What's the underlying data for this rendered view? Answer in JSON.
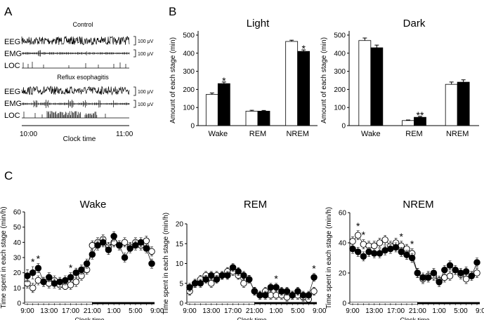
{
  "panel_labels": {
    "a": "A",
    "b": "B",
    "c": "C"
  },
  "traces": {
    "control_title": "Control",
    "reflux_title": "Reflux esophagitis",
    "eeg": "EEG",
    "emg": "EMG",
    "loc": "LOC",
    "scale": "100 μV",
    "x_start": "10:00",
    "x_end": "11:00",
    "xlabel": "Clock time"
  },
  "stage_ylabel": "Amount of each stage (min)",
  "hourly_ylabel": "Time spent in each stage (min/h)",
  "colors": {
    "control": "#ffffff",
    "reflux": "#000000"
  },
  "chart_data": [
    {
      "type": "bar",
      "title": "Light",
      "categories": [
        "Wake",
        "REM",
        "NREM"
      ],
      "ylim": [
        0,
        500
      ],
      "yticks": [
        0,
        100,
        200,
        300,
        400,
        500
      ],
      "ylabel": "Amount of each stage (min)",
      "series": [
        {
          "name": "Control",
          "values": [
            172,
            80,
            465
          ],
          "errors": [
            8,
            5,
            7
          ]
        },
        {
          "name": "Reflux esophagitis",
          "values": [
            232,
            80,
            410
          ],
          "errors": [
            9,
            4,
            8
          ]
        }
      ],
      "annotations": [
        {
          "category": "Wake",
          "text": "*"
        },
        {
          "category": "NREM",
          "text": "*"
        }
      ]
    },
    {
      "type": "bar",
      "title": "Dark",
      "categories": [
        "Wake",
        "REM",
        "NREM"
      ],
      "ylim": [
        0,
        500
      ],
      "yticks": [
        0,
        100,
        200,
        300,
        400,
        500
      ],
      "ylabel": "Amount of each stage (min)",
      "series": [
        {
          "name": "Control",
          "values": [
            470,
            28,
            228
          ],
          "errors": [
            14,
            3,
            13
          ]
        },
        {
          "name": "Reflux esophagitis",
          "values": [
            430,
            46,
            240
          ],
          "errors": [
            15,
            5,
            13
          ]
        }
      ],
      "annotations": [
        {
          "category": "REM",
          "text": "**"
        }
      ]
    },
    {
      "type": "scatter",
      "title": "Wake",
      "x": [
        "9:00",
        "10:00",
        "11:00",
        "12:00",
        "13:00",
        "14:00",
        "15:00",
        "16:00",
        "17:00",
        "18:00",
        "19:00",
        "20:00",
        "21:00",
        "22:00",
        "23:00",
        "0:00",
        "1:00",
        "2:00",
        "3:00",
        "4:00",
        "5:00",
        "6:00",
        "7:00",
        "8:00"
      ],
      "xticks": [
        "9:00",
        "13:00",
        "17:00",
        "21:00",
        "1:00",
        "5:00",
        "9:00"
      ],
      "xlabel": "Clock time",
      "ylim": [
        0,
        60
      ],
      "yticks": [
        0,
        10,
        20,
        30,
        40,
        50,
        60
      ],
      "ylabel": "Time spent in each stage (min/h)",
      "series": [
        {
          "name": "Control",
          "fill": "open",
          "values": [
            13,
            10,
            15,
            14,
            13,
            15,
            12,
            11,
            12,
            14,
            18,
            22,
            38,
            40,
            42,
            37,
            40,
            38,
            40,
            37,
            40,
            38,
            41,
            34
          ],
          "errors": [
            3,
            3,
            3,
            3,
            3,
            3,
            3,
            2,
            3,
            3,
            3,
            3,
            3,
            3,
            3,
            3,
            3,
            3,
            3,
            3,
            3,
            3,
            3,
            3
          ]
        },
        {
          "name": "Reflux esophagitis",
          "fill": "filled",
          "values": [
            18,
            20,
            23,
            14,
            17,
            13,
            14,
            15,
            17,
            20,
            22,
            26,
            32,
            38,
            40,
            35,
            44,
            38,
            30,
            36,
            38,
            40,
            36,
            26
          ],
          "errors": [
            4,
            4,
            3,
            3,
            3,
            3,
            3,
            3,
            3,
            3,
            3,
            3,
            3,
            3,
            3,
            3,
            3,
            3,
            3,
            3,
            3,
            3,
            3,
            3
          ]
        }
      ],
      "annotations": [
        {
          "x": "10:00",
          "text": "*"
        },
        {
          "x": "11:00",
          "text": "*"
        },
        {
          "x": "17:00",
          "text": "*"
        }
      ]
    },
    {
      "type": "scatter",
      "title": "REM",
      "x": [
        "9:00",
        "10:00",
        "11:00",
        "12:00",
        "13:00",
        "14:00",
        "15:00",
        "16:00",
        "17:00",
        "18:00",
        "19:00",
        "20:00",
        "21:00",
        "22:00",
        "23:00",
        "0:00",
        "1:00",
        "2:00",
        "3:00",
        "4:00",
        "5:00",
        "6:00",
        "7:00",
        "8:00"
      ],
      "xticks": [
        "9:00",
        "13:00",
        "17:00",
        "21:00",
        "1:00",
        "5:00",
        "9:00"
      ],
      "xlabel": "Clock time",
      "ylim": [
        0,
        20
      ],
      "yticks": [
        0,
        5,
        10,
        15,
        20
      ],
      "ylabel": "Time spent in each stage (min/h)",
      "series": [
        {
          "name": "Control",
          "fill": "open",
          "values": [
            3,
            5,
            6,
            7,
            5,
            7,
            7,
            8,
            8,
            7,
            5,
            6,
            3,
            2,
            3,
            2,
            2,
            2,
            1.5,
            2,
            2,
            1.5,
            1,
            3
          ],
          "errors": [
            1,
            1,
            1,
            1,
            1,
            1,
            1,
            1,
            1,
            1,
            1,
            1,
            1,
            1,
            1,
            1,
            1,
            1,
            1,
            1,
            1,
            1,
            1,
            1
          ]
        },
        {
          "name": "Reflux esophagitis",
          "fill": "filled",
          "values": [
            4,
            5,
            5,
            6,
            7,
            6,
            7,
            7,
            9,
            8,
            7,
            6,
            3,
            2,
            2,
            4,
            4,
            3,
            3,
            2,
            3,
            2,
            2,
            6.5
          ],
          "errors": [
            1,
            1,
            1,
            1,
            1,
            1,
            1,
            1,
            1,
            1,
            1,
            1,
            1,
            1,
            1,
            1,
            1,
            1,
            1,
            1,
            1,
            1,
            1,
            1
          ]
        }
      ],
      "annotations": [
        {
          "x": "1:00",
          "text": "*"
        },
        {
          "x": "8:00",
          "text": "*"
        }
      ]
    },
    {
      "type": "scatter",
      "title": "NREM",
      "x": [
        "9:00",
        "10:00",
        "11:00",
        "12:00",
        "13:00",
        "14:00",
        "15:00",
        "16:00",
        "17:00",
        "18:00",
        "19:00",
        "20:00",
        "21:00",
        "22:00",
        "23:00",
        "0:00",
        "1:00",
        "2:00",
        "3:00",
        "4:00",
        "5:00",
        "6:00",
        "7:00",
        "8:00"
      ],
      "xticks": [
        "9:00",
        "13:00",
        "17:00",
        "21:00",
        "1:00",
        "5:00",
        "9:00"
      ],
      "xlabel": "Clock time",
      "ylim": [
        0,
        60
      ],
      "yticks": [
        0,
        20,
        40,
        60
      ],
      "ylabel": "Time spent in each stage (min/h)",
      "series": [
        {
          "name": "Control",
          "fill": "open",
          "values": [
            41,
            45,
            39,
            38,
            38,
            40,
            42,
            38,
            40,
            38,
            36,
            33,
            20,
            16,
            18,
            18,
            15,
            17,
            18,
            22,
            19,
            16,
            18,
            20
          ],
          "errors": [
            3,
            3,
            3,
            3,
            3,
            3,
            3,
            3,
            3,
            3,
            3,
            3,
            3,
            3,
            3,
            3,
            3,
            3,
            3,
            3,
            3,
            3,
            3,
            3
          ]
        },
        {
          "name": "Reflux esophagitis",
          "fill": "filled",
          "values": [
            36,
            34,
            31,
            34,
            33,
            33,
            35,
            36,
            37,
            34,
            32,
            30,
            20,
            17,
            17,
            20,
            14,
            22,
            25,
            22,
            20,
            21,
            18,
            27
          ],
          "errors": [
            3,
            3,
            3,
            3,
            3,
            3,
            3,
            3,
            3,
            3,
            3,
            3,
            3,
            3,
            3,
            3,
            3,
            3,
            3,
            3,
            3,
            3,
            3,
            3
          ]
        }
      ],
      "annotations": [
        {
          "x": "10:00",
          "text": "*"
        },
        {
          "x": "11:00",
          "text": "*"
        },
        {
          "x": "18:00",
          "text": "*"
        },
        {
          "x": "20:00",
          "text": "*"
        }
      ]
    }
  ]
}
